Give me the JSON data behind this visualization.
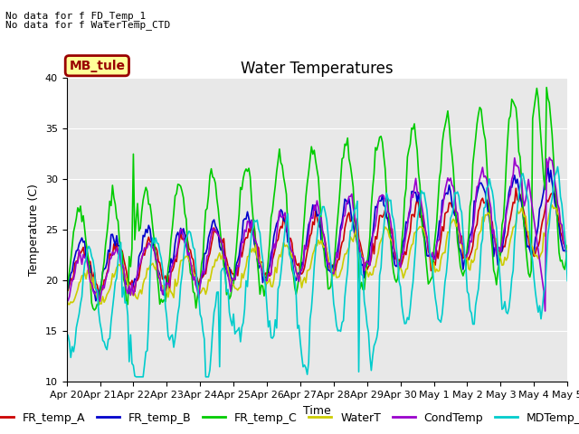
{
  "title": "Water Temperatures",
  "xlabel": "Time",
  "ylabel": "Temperature (C)",
  "ylim": [
    10,
    40
  ],
  "xlim": [
    0,
    360
  ],
  "xtick_labels": [
    "Apr 20",
    "Apr 21",
    "Apr 22",
    "Apr 23",
    "Apr 24",
    "Apr 25",
    "Apr 26",
    "Apr 27",
    "Apr 28",
    "Apr 29",
    "Apr 30",
    "May 1",
    "May 2",
    "May 3",
    "May 4",
    "May 5"
  ],
  "xtick_positions": [
    0,
    24,
    48,
    72,
    96,
    120,
    144,
    168,
    192,
    216,
    240,
    264,
    288,
    312,
    336,
    360
  ],
  "annotation_lines": [
    "No data for f FD_Temp_1",
    "No data for f WaterTemp_CTD"
  ],
  "mb_tule_label": "MB_tule",
  "legend_labels": [
    "FR_temp_A",
    "FR_temp_B",
    "FR_temp_C",
    "WaterT",
    "CondTemp",
    "MDTemp_A"
  ],
  "line_colors": [
    "#cc0000",
    "#0000cc",
    "#00cc00",
    "#cccc00",
    "#9900cc",
    "#00cccc"
  ],
  "line_widths": [
    1.2,
    1.2,
    1.2,
    1.2,
    1.2,
    1.2
  ],
  "background_color": "#e8e8e8",
  "fig_background": "#ffffff",
  "title_fontsize": 12,
  "axis_fontsize": 9,
  "tick_fontsize": 8,
  "legend_fontsize": 9,
  "annotation_fontsize": 8
}
